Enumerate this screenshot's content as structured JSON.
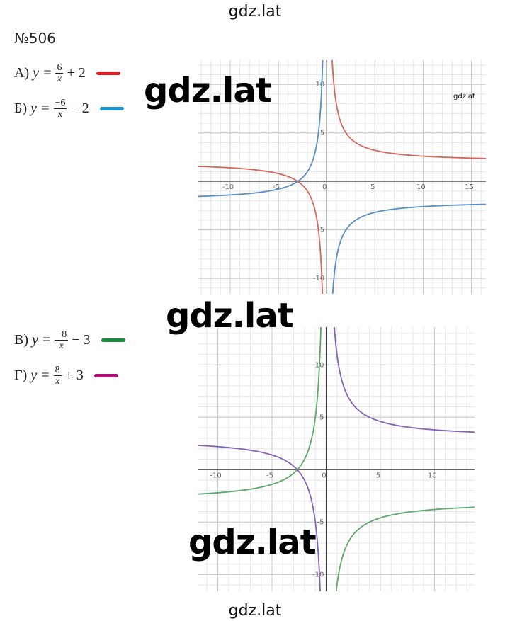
{
  "header": {
    "title": "gdz.lat"
  },
  "problem": {
    "number": "№506"
  },
  "graphs": [
    {
      "items": [
        {
          "label": "А)",
          "lhs": "y =",
          "numerator": "6",
          "denominator": "x",
          "tail": "+ 2",
          "marker_color": "#d8232a"
        },
        {
          "label": "Б)",
          "lhs": "y =",
          "numerator": "−6",
          "denominator": "x",
          "tail": "− 2",
          "marker_color": "#1d95d0"
        }
      ],
      "xlim": [
        -13.3,
        16.5
      ],
      "ylim": [
        -11.6,
        12.5
      ],
      "xticks": [
        -10,
        -5,
        0,
        5,
        10,
        15
      ],
      "yticks": [
        -10,
        -5,
        5,
        10
      ],
      "functions": [
        {
          "k": 6,
          "b": 2,
          "color": "#d4675c"
        },
        {
          "k": -6,
          "b": -2,
          "color": "#5b8fc4"
        }
      ]
    },
    {
      "items": [
        {
          "label": "В)",
          "lhs": "y =",
          "numerator": "−8",
          "denominator": "x",
          "tail": "− 3",
          "marker_color": "#1a8a3c"
        },
        {
          "label": "Г)",
          "lhs": "y =",
          "numerator": "8",
          "denominator": "x",
          "tail": "+ 3",
          "marker_color": "#b0147a"
        }
      ],
      "xlim": [
        -11.8,
        13.7
      ],
      "ylim": [
        -11.6,
        13.6
      ],
      "xticks": [
        -10,
        -5,
        0,
        5,
        10
      ],
      "yticks": [
        -10,
        -5,
        5,
        10
      ],
      "functions": [
        {
          "k": -8,
          "b": -3,
          "color": "#5fa86b"
        },
        {
          "k": 8,
          "b": 3,
          "color": "#8462b8"
        }
      ]
    }
  ],
  "watermarks": [
    "gdz.lat",
    "gdz.lat",
    "gdz.lat",
    "gdzlat"
  ],
  "footer": "gdz.lat"
}
